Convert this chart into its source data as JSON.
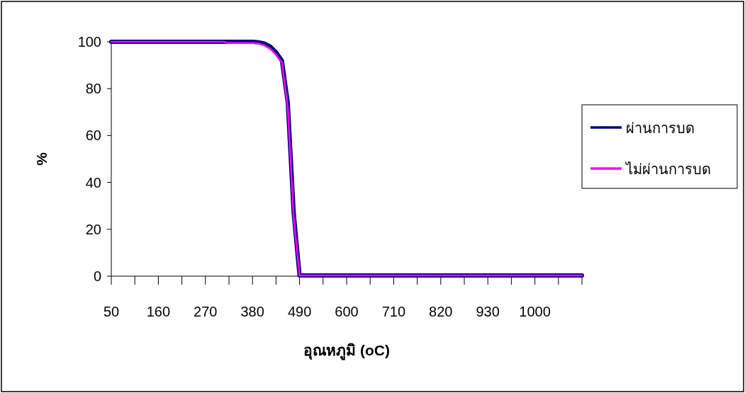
{
  "chart_data": {
    "type": "line",
    "xlabel": "อุณหภูมิ (oC)",
    "ylabel": "%",
    "categories": [
      "50",
      null,
      null,
      null,
      null,
      null,
      null,
      null,
      "160",
      null,
      null,
      null,
      null,
      null,
      null,
      null,
      "270",
      null,
      null,
      null,
      null,
      null,
      null,
      null,
      "380",
      null,
      null,
      null,
      null,
      null,
      null,
      null,
      "490",
      null,
      null,
      null,
      null,
      null,
      null,
      null,
      "600",
      null,
      null,
      null,
      null,
      null,
      null,
      null,
      "710",
      null,
      null,
      null,
      null,
      null,
      null,
      null,
      "820",
      null,
      null,
      null,
      null,
      null,
      null,
      null,
      "930",
      null,
      null,
      null,
      null,
      null,
      null,
      null,
      "1000",
      null,
      null,
      null,
      null,
      null,
      null,
      null,
      null
    ],
    "series": [
      {
        "name": "ผ่านการบด",
        "color": "#000080",
        "values": [
          100,
          100,
          100,
          100,
          100,
          100,
          100,
          100,
          100,
          100,
          100,
          100,
          100,
          100,
          100,
          100,
          100,
          100,
          100,
          100,
          100,
          100,
          100,
          100,
          100,
          99.8,
          99.3,
          98,
          95.5,
          92,
          74,
          27,
          0.3,
          0.3,
          0.3,
          0.3,
          0.3,
          0.3,
          0.3,
          0.3,
          0.3,
          0.3,
          0.3,
          0.3,
          0.3,
          0.3,
          0.3,
          0.3,
          0.3,
          0.3,
          0.3,
          0.3,
          0.3,
          0.3,
          0.3,
          0.3,
          0.3,
          0.3,
          0.3,
          0.3,
          0.3,
          0.3,
          0.3,
          0.3,
          0.3,
          0.3,
          0.3,
          0.3,
          0.3,
          0.3,
          0.3,
          0.3,
          0.3,
          0.3,
          0.3,
          0.3,
          0.3,
          0.3,
          0.3,
          0.3,
          0.3
        ]
      },
      {
        "name": "ไม่ผ่านการบด",
        "color": "#ff00ff",
        "values": [
          100,
          100,
          100,
          100,
          100,
          100,
          100,
          100,
          100,
          100,
          100,
          100,
          100,
          100,
          100,
          100,
          100,
          100,
          100,
          100,
          99.5,
          99.5,
          99.5,
          99.5,
          99.5,
          99.3,
          98.5,
          97,
          94.5,
          91,
          72,
          25,
          0.3,
          0.3,
          0.3,
          0.3,
          0.3,
          0.3,
          0.3,
          0.3,
          0.3,
          0.3,
          0.3,
          0.3,
          0.3,
          0.3,
          0.3,
          0.3,
          0.3,
          0.3,
          0.3,
          0.3,
          0.3,
          0.3,
          0.3,
          0.3,
          0.3,
          0.3,
          0.3,
          0.3,
          0.3,
          0.3,
          0.3,
          0.3,
          0.3,
          0.3,
          0.3,
          0.3,
          0.3,
          0.3,
          0.3,
          0.3,
          0.3,
          0.3,
          0.3,
          0.3,
          0.3,
          0.3,
          0.3,
          0.3,
          0.3
        ]
      }
    ],
    "ylim": [
      0,
      100
    ],
    "yticks": [
      0,
      20,
      40,
      60,
      80,
      100
    ],
    "legend": "right"
  }
}
